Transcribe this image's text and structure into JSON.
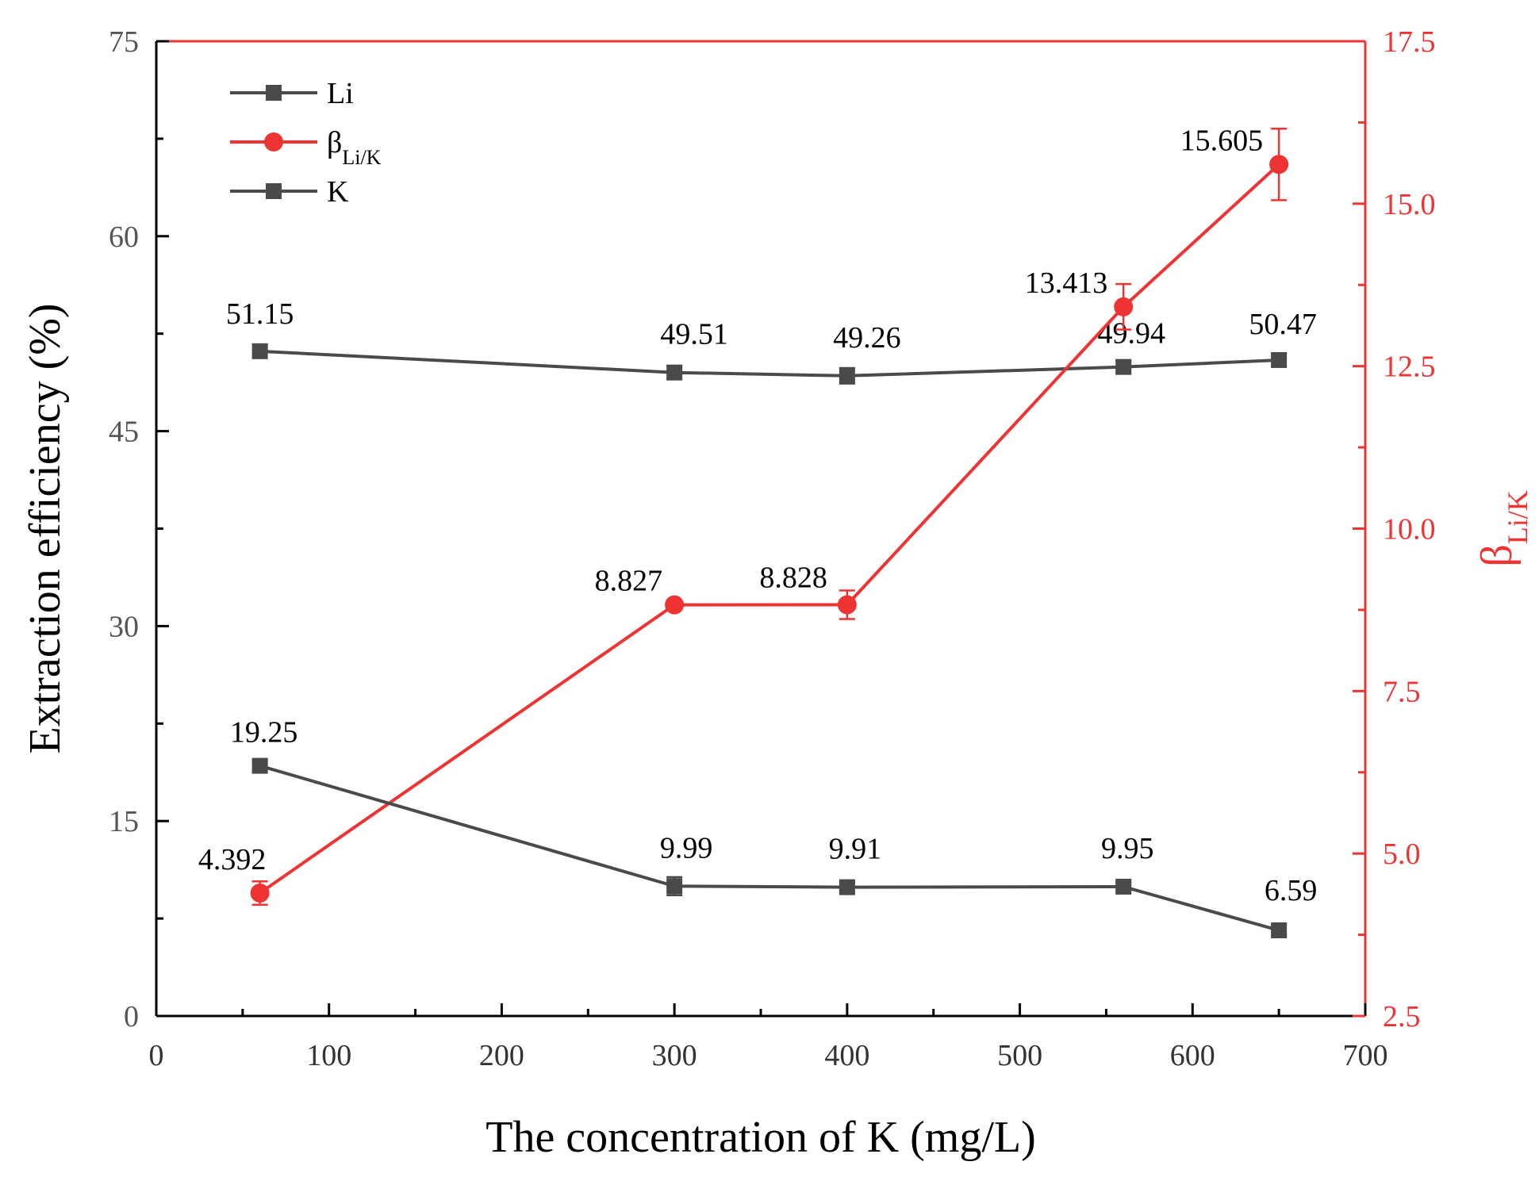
{
  "colors": {
    "black_series": "#4a4a4a",
    "red_series": "#ee3333",
    "left_axis_text": "#555555"
  },
  "chart_data": {
    "type": "line",
    "xlabel": "The concentration of K (mg/L)",
    "ylabel": "Extraction efficiency (%)",
    "y2label": {
      "base": "β",
      "sub": "Li/K"
    },
    "xlim": [
      0,
      700
    ],
    "ylim": [
      0,
      75
    ],
    "y2lim": [
      2.5,
      17.5
    ],
    "x_ticks": [
      "0",
      "100",
      "200",
      "300",
      "400",
      "500",
      "600",
      "700"
    ],
    "y_ticks": [
      "0",
      "15",
      "30",
      "45",
      "60",
      "75"
    ],
    "y2_ticks": [
      "2.5",
      "5.0",
      "7.5",
      "10.0",
      "12.5",
      "15.0",
      "17.5"
    ],
    "x": [
      60,
      300,
      400,
      560,
      650
    ],
    "series": [
      {
        "name": "Li",
        "axis": "left",
        "marker": "square",
        "values": [
          51.15,
          49.51,
          49.26,
          49.94,
          50.47
        ],
        "labels": [
          "51.15",
          "49.51",
          "49.26",
          "49.94",
          "50.47"
        ],
        "errors": [
          0.5,
          0.5,
          0.6,
          0.5,
          0.5
        ]
      },
      {
        "name": "β",
        "name_sub": "Li/K",
        "axis": "right",
        "marker": "circle",
        "values": [
          4.392,
          8.827,
          8.828,
          13.413,
          15.605
        ],
        "labels": [
          "4.392",
          "8.827",
          "8.828",
          "13.413",
          "15.605"
        ],
        "errors": [
          0.18,
          0.07,
          0.22,
          0.35,
          0.55
        ]
      },
      {
        "name": "K",
        "axis": "left",
        "marker": "square",
        "values": [
          19.25,
          9.99,
          9.91,
          9.95,
          6.59
        ],
        "labels": [
          "19.25",
          "9.99",
          "9.91",
          "9.95",
          "6.59"
        ],
        "errors": [
          0.3,
          0.7,
          0.4,
          0.3,
          0.3
        ]
      }
    ],
    "legend": {
      "position": "top-left"
    }
  }
}
